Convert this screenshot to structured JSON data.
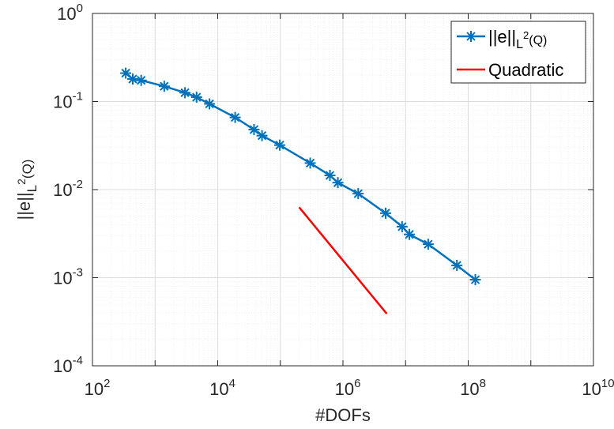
{
  "chart_data": {
    "type": "line",
    "xscale": "log",
    "yscale": "log",
    "xlim": [
      100,
      10000000000
    ],
    "ylim": [
      0.0001,
      1
    ],
    "grid": true,
    "minor_grid": true,
    "legend_position": "top-right",
    "xlabel": "#DOFs",
    "ylabel": {
      "base": "||e||",
      "sub": "L",
      "sup": "2",
      "tail": "(Q)"
    },
    "x_ticks": [
      {
        "base": "10",
        "exp": "2"
      },
      {
        "base": "10",
        "exp": "4"
      },
      {
        "base": "10",
        "exp": "6"
      },
      {
        "base": "10",
        "exp": "8"
      },
      {
        "base": "10",
        "exp": "10"
      }
    ],
    "y_ticks": [
      {
        "base": "10",
        "exp": "-4"
      },
      {
        "base": "10",
        "exp": "-3"
      },
      {
        "base": "10",
        "exp": "-2"
      },
      {
        "base": "10",
        "exp": "-1"
      },
      {
        "base": "10",
        "exp": "0"
      }
    ],
    "series": [
      {
        "name": {
          "base": "||e||",
          "sub": "L",
          "sup": "2",
          "tail": "(Q)"
        },
        "color": "#0072BD",
        "marker": "asterisk",
        "points": [
          [
            340,
            0.21
          ],
          [
            440,
            0.18
          ],
          [
            600,
            0.174
          ],
          [
            1400,
            0.149
          ],
          [
            3000,
            0.126
          ],
          [
            4600,
            0.112
          ],
          [
            7400,
            0.094
          ],
          [
            19000,
            0.066
          ],
          [
            38000,
            0.048
          ],
          [
            51000,
            0.041
          ],
          [
            98000,
            0.032
          ],
          [
            300000,
            0.02
          ],
          [
            620000,
            0.0145
          ],
          [
            830000,
            0.012
          ],
          [
            1750000,
            0.009
          ],
          [
            4800000,
            0.0054
          ],
          [
            8800000,
            0.0038
          ],
          [
            11500000,
            0.0031
          ],
          [
            23000000,
            0.0024
          ],
          [
            66000000,
            0.00138
          ],
          [
            130000000,
            0.00095
          ]
        ]
      },
      {
        "name": "Quadratic",
        "color": "#FF0000",
        "marker": "none",
        "points": [
          [
            200000,
            0.0063
          ],
          [
            5000000,
            0.00039
          ]
        ]
      }
    ]
  }
}
